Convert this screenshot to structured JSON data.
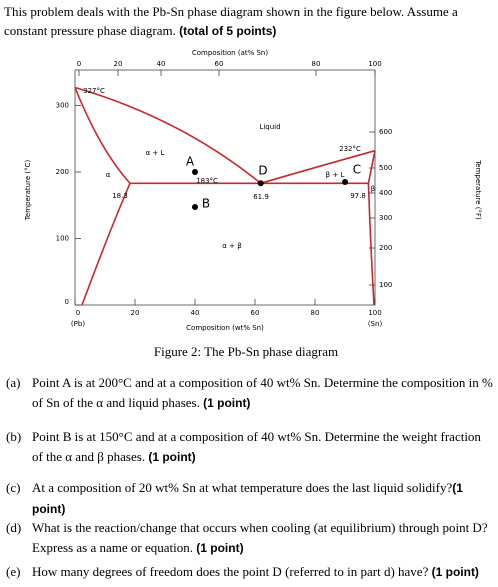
{
  "intro": {
    "text": "This problem deals with the Pb-Sn phase diagram shown in the figure below. Assume a constant pressure phase diagram.",
    "points": "(total of 5 points)"
  },
  "figure": {
    "top_axis": {
      "title": "Composition (at% Sn)",
      "ticks": [
        "0",
        "20",
        "40",
        "60",
        "80",
        "100"
      ]
    },
    "bottom_axis": {
      "title": "Composition (wt% Sn)",
      "ticks": [
        "0",
        "20",
        "40",
        "60",
        "80",
        "100"
      ],
      "end_labels": [
        "(Pb)",
        "(Sn)"
      ]
    },
    "left_axis": {
      "title": "Temperature (°C)",
      "ticks": [
        "0",
        "100",
        "200",
        "300"
      ]
    },
    "right_axis": {
      "title": "Temperature (°F)",
      "ticks": [
        "100",
        "200",
        "300",
        "400",
        "500",
        "600"
      ]
    },
    "region_labels": [
      "Liquid",
      "α + L",
      "β + L",
      "α",
      "β",
      "α + β"
    ],
    "annotations": [
      "327°C",
      "232°C",
      "183°C",
      "18.3",
      "61.9",
      "97.8"
    ],
    "points": [
      "A",
      "B",
      "C",
      "D"
    ],
    "caption": "Figure 2: The Pb-Sn phase diagram"
  },
  "questions": [
    {
      "label": "(a)",
      "text": "Point A is at 200°C and at a composition of 40 wt% Sn. Determine the composition in % of Sn of the α and liquid phases.",
      "points": "(1 point)"
    },
    {
      "label": "(b)",
      "text": "Point B is at 150°C and at a composition of 40 wt% Sn. Determine the weight fraction of the α and β phases.",
      "points": "(1 point)"
    },
    {
      "label": "(c)",
      "text": "At a composition of 20 wt% Sn at what temperature does the last liquid solidify?",
      "points": "(1 point)"
    },
    {
      "label": "(d)",
      "text": "What is the reaction/change that occurs when cooling (at equilibrium) through point D? Express as a name or equation.",
      "points": "(1 point)"
    },
    {
      "label": "(e)",
      "text": "How many degrees of freedom does the point D (referred to in part d) have?",
      "points": "(1 point)"
    }
  ]
}
